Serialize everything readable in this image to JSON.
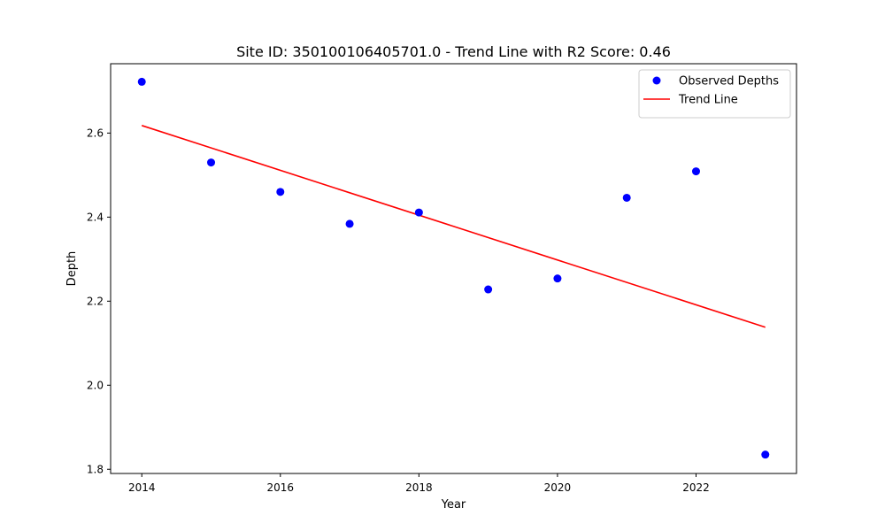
{
  "chart_data": {
    "type": "scatter",
    "title": "Site ID: 350100106405701.0 - Trend Line with R2 Score: 0.46",
    "xlabel": "Year",
    "ylabel": "Depth",
    "xlim": [
      2013.55,
      2023.45
    ],
    "ylim": [
      1.79,
      2.765
    ],
    "xticks": [
      2014,
      2016,
      2018,
      2020,
      2022
    ],
    "yticks": [
      1.8,
      2.0,
      2.2,
      2.4,
      2.6
    ],
    "xtick_labels": [
      "2014",
      "2016",
      "2018",
      "2020",
      "2022"
    ],
    "ytick_labels": [
      "1.8",
      "2.0",
      "2.2",
      "2.4",
      "2.6"
    ],
    "grid": false,
    "legend_position": "top-right",
    "series": [
      {
        "name": "Observed Depths",
        "type": "scatter",
        "color": "#0000ff",
        "x": [
          2014,
          2015,
          2016,
          2017,
          2018,
          2019,
          2020,
          2021,
          2022,
          2023
        ],
        "y": [
          2.722,
          2.53,
          2.46,
          2.384,
          2.411,
          2.228,
          2.254,
          2.446,
          2.509,
          1.835
        ]
      },
      {
        "name": "Trend Line",
        "type": "line",
        "color": "#ff0000",
        "x": [
          2014,
          2023
        ],
        "y": [
          2.618,
          2.138
        ]
      }
    ]
  }
}
